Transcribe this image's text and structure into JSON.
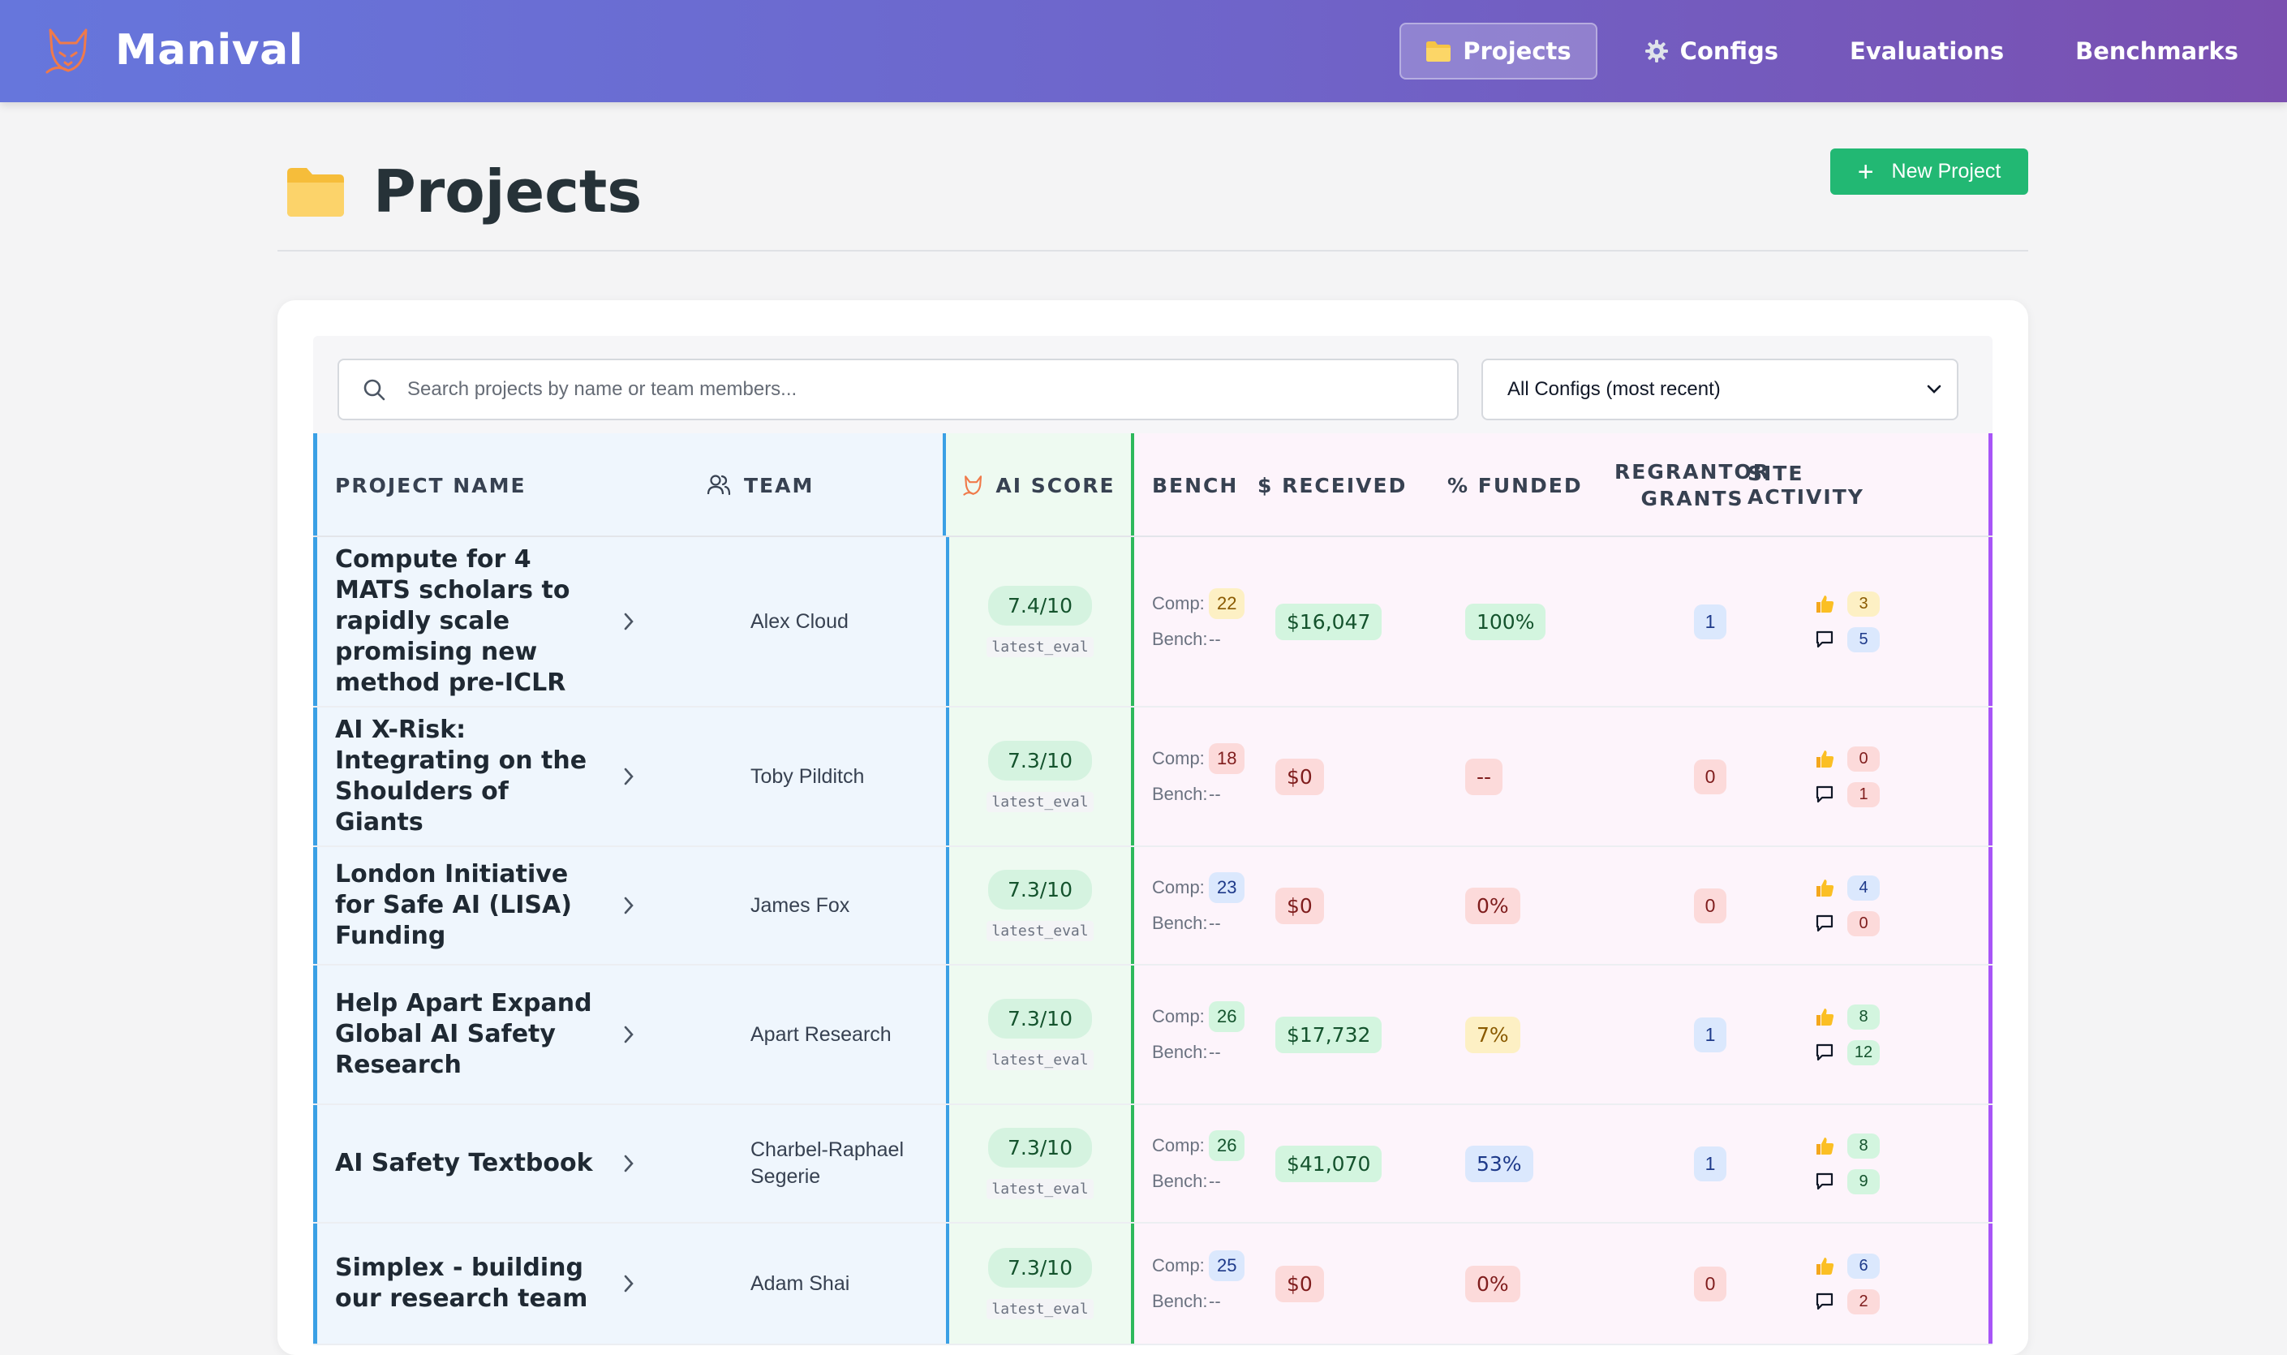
{
  "app": {
    "name": "Manival"
  },
  "nav": [
    {
      "label": "Projects",
      "icon": "folder-icon",
      "active": true
    },
    {
      "label": "Configs",
      "icon": "gear-icon",
      "active": false
    },
    {
      "label": "Evaluations",
      "icon": "",
      "active": false
    },
    {
      "label": "Benchmarks",
      "icon": "",
      "active": false
    }
  ],
  "page": {
    "title": "Projects",
    "new_button_label": "New Project"
  },
  "search": {
    "placeholder": "Search projects by name or team members...",
    "value": ""
  },
  "config_select": {
    "selected": "All Configs (most recent)"
  },
  "columns": {
    "project_name": "PROJECT NAME",
    "team": "TEAM",
    "ai_score": "AI SCORE",
    "bench": "BENCH",
    "received": "$ RECEIVED",
    "funded": "% FUNDED",
    "regrantor_line1": "REGRANTOR",
    "regrantor_line2": "GRANTS",
    "site_activity": "SITE ACTIVITY"
  },
  "labels": {
    "comp": "Comp:",
    "bench": "Bench:",
    "score_source": "latest_eval"
  },
  "colors": {
    "header_gradient_start": "#6676dc",
    "header_gradient_end": "#7a4fb0",
    "new_button": "#22b873",
    "group_project_border": "#3aa0e5",
    "group_score_border": "#2eb85c",
    "group_funding_border": "#a855f7"
  },
  "rows": [
    {
      "name": "Compute for 4 MATS scholars to rapidly scale promising new method pre-ICLR",
      "team": "Alex Cloud",
      "score": "7.4/10",
      "comp": "22",
      "comp_color": "yellow",
      "bench": "--",
      "received": "$16,047",
      "received_color": "green",
      "funded": "100%",
      "funded_color": "green",
      "grants": "1",
      "grants_color": "blue",
      "likes": "3",
      "likes_color": "yellow",
      "comments": "5",
      "comments_color": "blue"
    },
    {
      "name": "AI X-Risk: Integrating on the Shoulders of Giants",
      "team": "Toby Pilditch",
      "score": "7.3/10",
      "comp": "18",
      "comp_color": "red",
      "bench": "--",
      "received": "$0",
      "received_color": "red",
      "funded": "--",
      "funded_color": "red",
      "grants": "0",
      "grants_color": "red",
      "likes": "0",
      "likes_color": "red",
      "comments": "1",
      "comments_color": "red"
    },
    {
      "name": "London Initiative for Safe AI (LISA) Funding",
      "team": "James Fox",
      "score": "7.3/10",
      "comp": "23",
      "comp_color": "blue",
      "bench": "--",
      "received": "$0",
      "received_color": "red",
      "funded": "0%",
      "funded_color": "red",
      "grants": "0",
      "grants_color": "red",
      "likes": "4",
      "likes_color": "blue",
      "comments": "0",
      "comments_color": "red"
    },
    {
      "name": "Help Apart Expand Global AI Safety Research",
      "team": "Apart Research",
      "score": "7.3/10",
      "comp": "26",
      "comp_color": "green",
      "bench": "--",
      "received": "$17,732",
      "received_color": "green",
      "funded": "7%",
      "funded_color": "yellow",
      "grants": "1",
      "grants_color": "blue",
      "likes": "8",
      "likes_color": "green",
      "comments": "12",
      "comments_color": "green"
    },
    {
      "name": "AI Safety Textbook",
      "team": "Charbel-Raphael Segerie",
      "score": "7.3/10",
      "comp": "26",
      "comp_color": "green",
      "bench": "--",
      "received": "$41,070",
      "received_color": "green",
      "funded": "53%",
      "funded_color": "blue",
      "grants": "1",
      "grants_color": "blue",
      "likes": "8",
      "likes_color": "green",
      "comments": "9",
      "comments_color": "green"
    },
    {
      "name": "Simplex - building our research team",
      "team": "Adam Shai",
      "score": "7.3/10",
      "comp": "25",
      "comp_color": "blue",
      "bench": "--",
      "received": "$0",
      "received_color": "red",
      "funded": "0%",
      "funded_color": "red",
      "grants": "0",
      "grants_color": "red",
      "likes": "6",
      "likes_color": "blue",
      "comments": "2",
      "comments_color": "red"
    }
  ]
}
